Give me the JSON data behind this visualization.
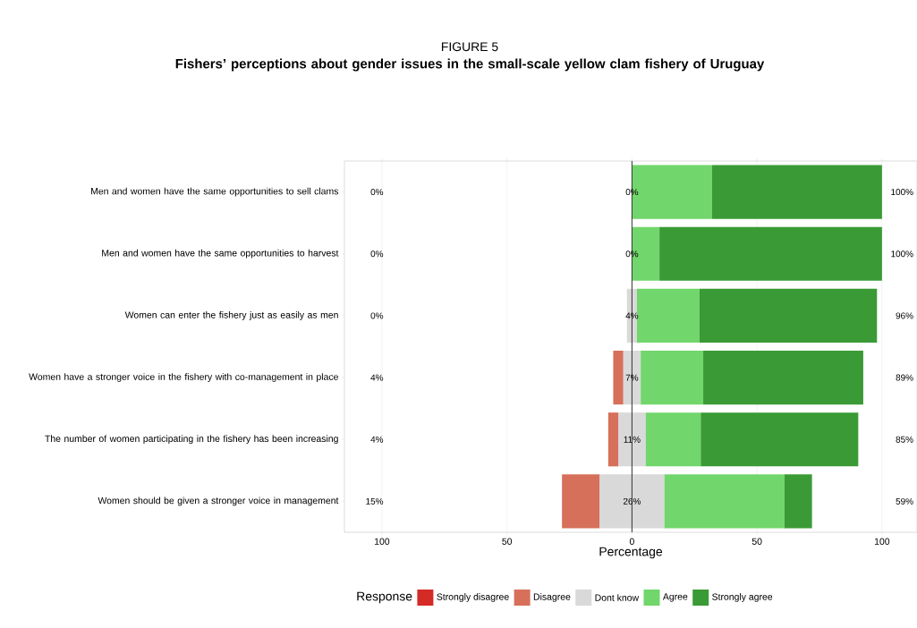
{
  "chart_data": {
    "type": "bar",
    "orientation": "horizontal",
    "stacked": true,
    "title": "FIGURE 5",
    "subtitle": "Fishers’ perceptions about gender issues in the small-scale yellow clam fishery of Uruguay",
    "categories": [
      "Men and women have the same opportunities to sell clams",
      "Men and women have the same opportunities to harvest",
      "Women can enter the fishery just as easily as men",
      "Women have a stronger voice in the fishery with co-management in place",
      "The number of women participating in the fishery has been increasing",
      "Women should be given a stronger voice in management"
    ],
    "series": [
      {
        "name": "Dont know",
        "color": "#d9d9d9",
        "values": [
          0,
          0,
          -2,
          -3.5,
          -5.5,
          -13
        ]
      },
      {
        "name": "Disagree",
        "color": "#d6705b",
        "values": [
          0,
          0,
          0,
          -4,
          -4,
          -15
        ]
      },
      {
        "name": "Strongly disagree",
        "color": "#d42b27",
        "values": [
          0,
          0,
          0,
          0,
          0,
          0
        ]
      },
      {
        "color": "#d9d9d9",
        "values": [
          0,
          0,
          2,
          3.5,
          5.5,
          13
        ]
      },
      {
        "name": "Agree",
        "color": "#71d66b",
        "values": [
          32,
          11,
          25,
          25,
          22,
          48
        ]
      },
      {
        "name": "Strongly agree",
        "color": "#3a9a35",
        "values": [
          68,
          89,
          71,
          64,
          63,
          11
        ]
      }
    ],
    "annotations": [
      "0%",
      "0%",
      "100%",
      "0%",
      "0%",
      "100%",
      "0%",
      "4%",
      "96%",
      "4%",
      "7%",
      "89%",
      "4%",
      "11%",
      "85%",
      "15%",
      "26%",
      "59%"
    ],
    "xlim": [
      -115,
      114
    ],
    "xticks": [
      {
        "value": -100,
        "label": "100"
      },
      {
        "value": -50,
        "label": "50"
      },
      0,
      50,
      100
    ],
    "xlabel": "Percentage",
    "grid": "x",
    "ref_lines": [
      {
        "axis": "x",
        "value": 0,
        "color": "#333333"
      }
    ],
    "legend": "bottom",
    "legend_title": "Response"
  }
}
